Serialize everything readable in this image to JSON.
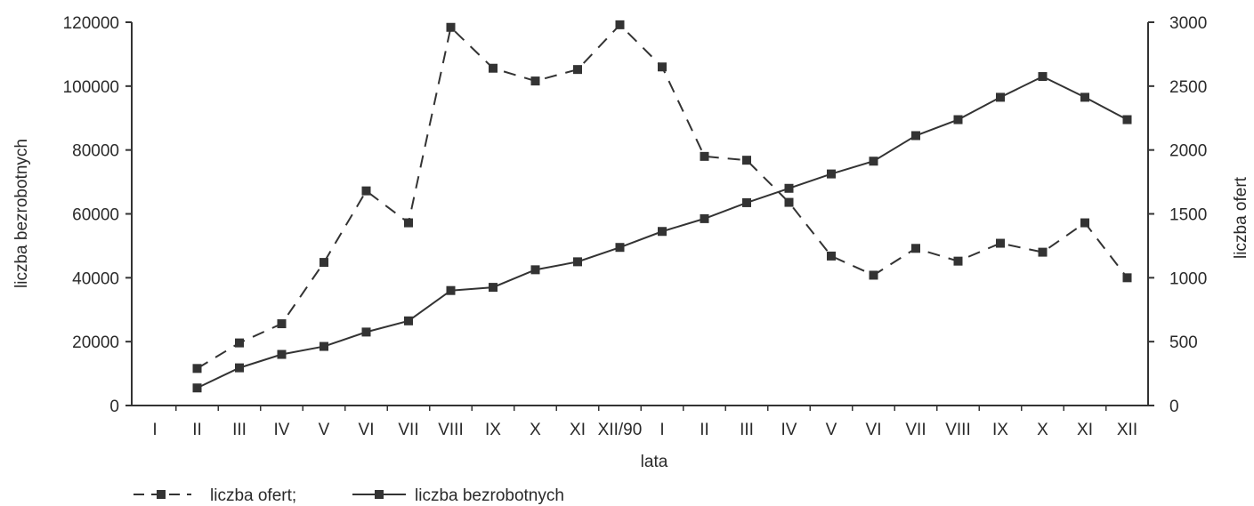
{
  "chart_data": {
    "type": "line",
    "xlabel": "lata",
    "ylabel_left": "liczba bezrobotnych",
    "ylabel_right": "liczba ofert",
    "categories": [
      "I",
      "II",
      "III",
      "IV",
      "V",
      "VI",
      "VII",
      "VIII",
      "IX",
      "X",
      "XI",
      "XII/90",
      "I",
      "II",
      "III",
      "IV",
      "V",
      "VI",
      "VII",
      "VIII",
      "IX",
      "X",
      "XI",
      "XII"
    ],
    "ylim_left": [
      0,
      120000
    ],
    "yticks_left": [
      0,
      20000,
      40000,
      60000,
      80000,
      100000,
      120000
    ],
    "ylim_right": [
      0,
      3000
    ],
    "yticks_right": [
      0,
      500,
      1000,
      1500,
      2000,
      2500,
      3000
    ],
    "series": [
      {
        "name": "liczba ofert;",
        "axis": "right",
        "line_style": "dashed",
        "values": [
          null,
          290,
          490,
          640,
          1120,
          1680,
          1430,
          2960,
          2640,
          2540,
          2630,
          2980,
          2650,
          1950,
          1920,
          1590,
          1170,
          1020,
          1230,
          1130,
          1270,
          1200,
          1430,
          1000
        ]
      },
      {
        "name": "liczba bezrobotnych",
        "axis": "left",
        "line_style": "solid",
        "values": [
          null,
          5500,
          11800,
          16000,
          18500,
          23000,
          26500,
          36000,
          37000,
          42500,
          45000,
          49500,
          54500,
          58500,
          63500,
          68000,
          72500,
          76500,
          84500,
          89500,
          96500,
          103000,
          96500,
          89500
        ]
      }
    ],
    "legend_position": "bottom-left",
    "grid": false
  }
}
